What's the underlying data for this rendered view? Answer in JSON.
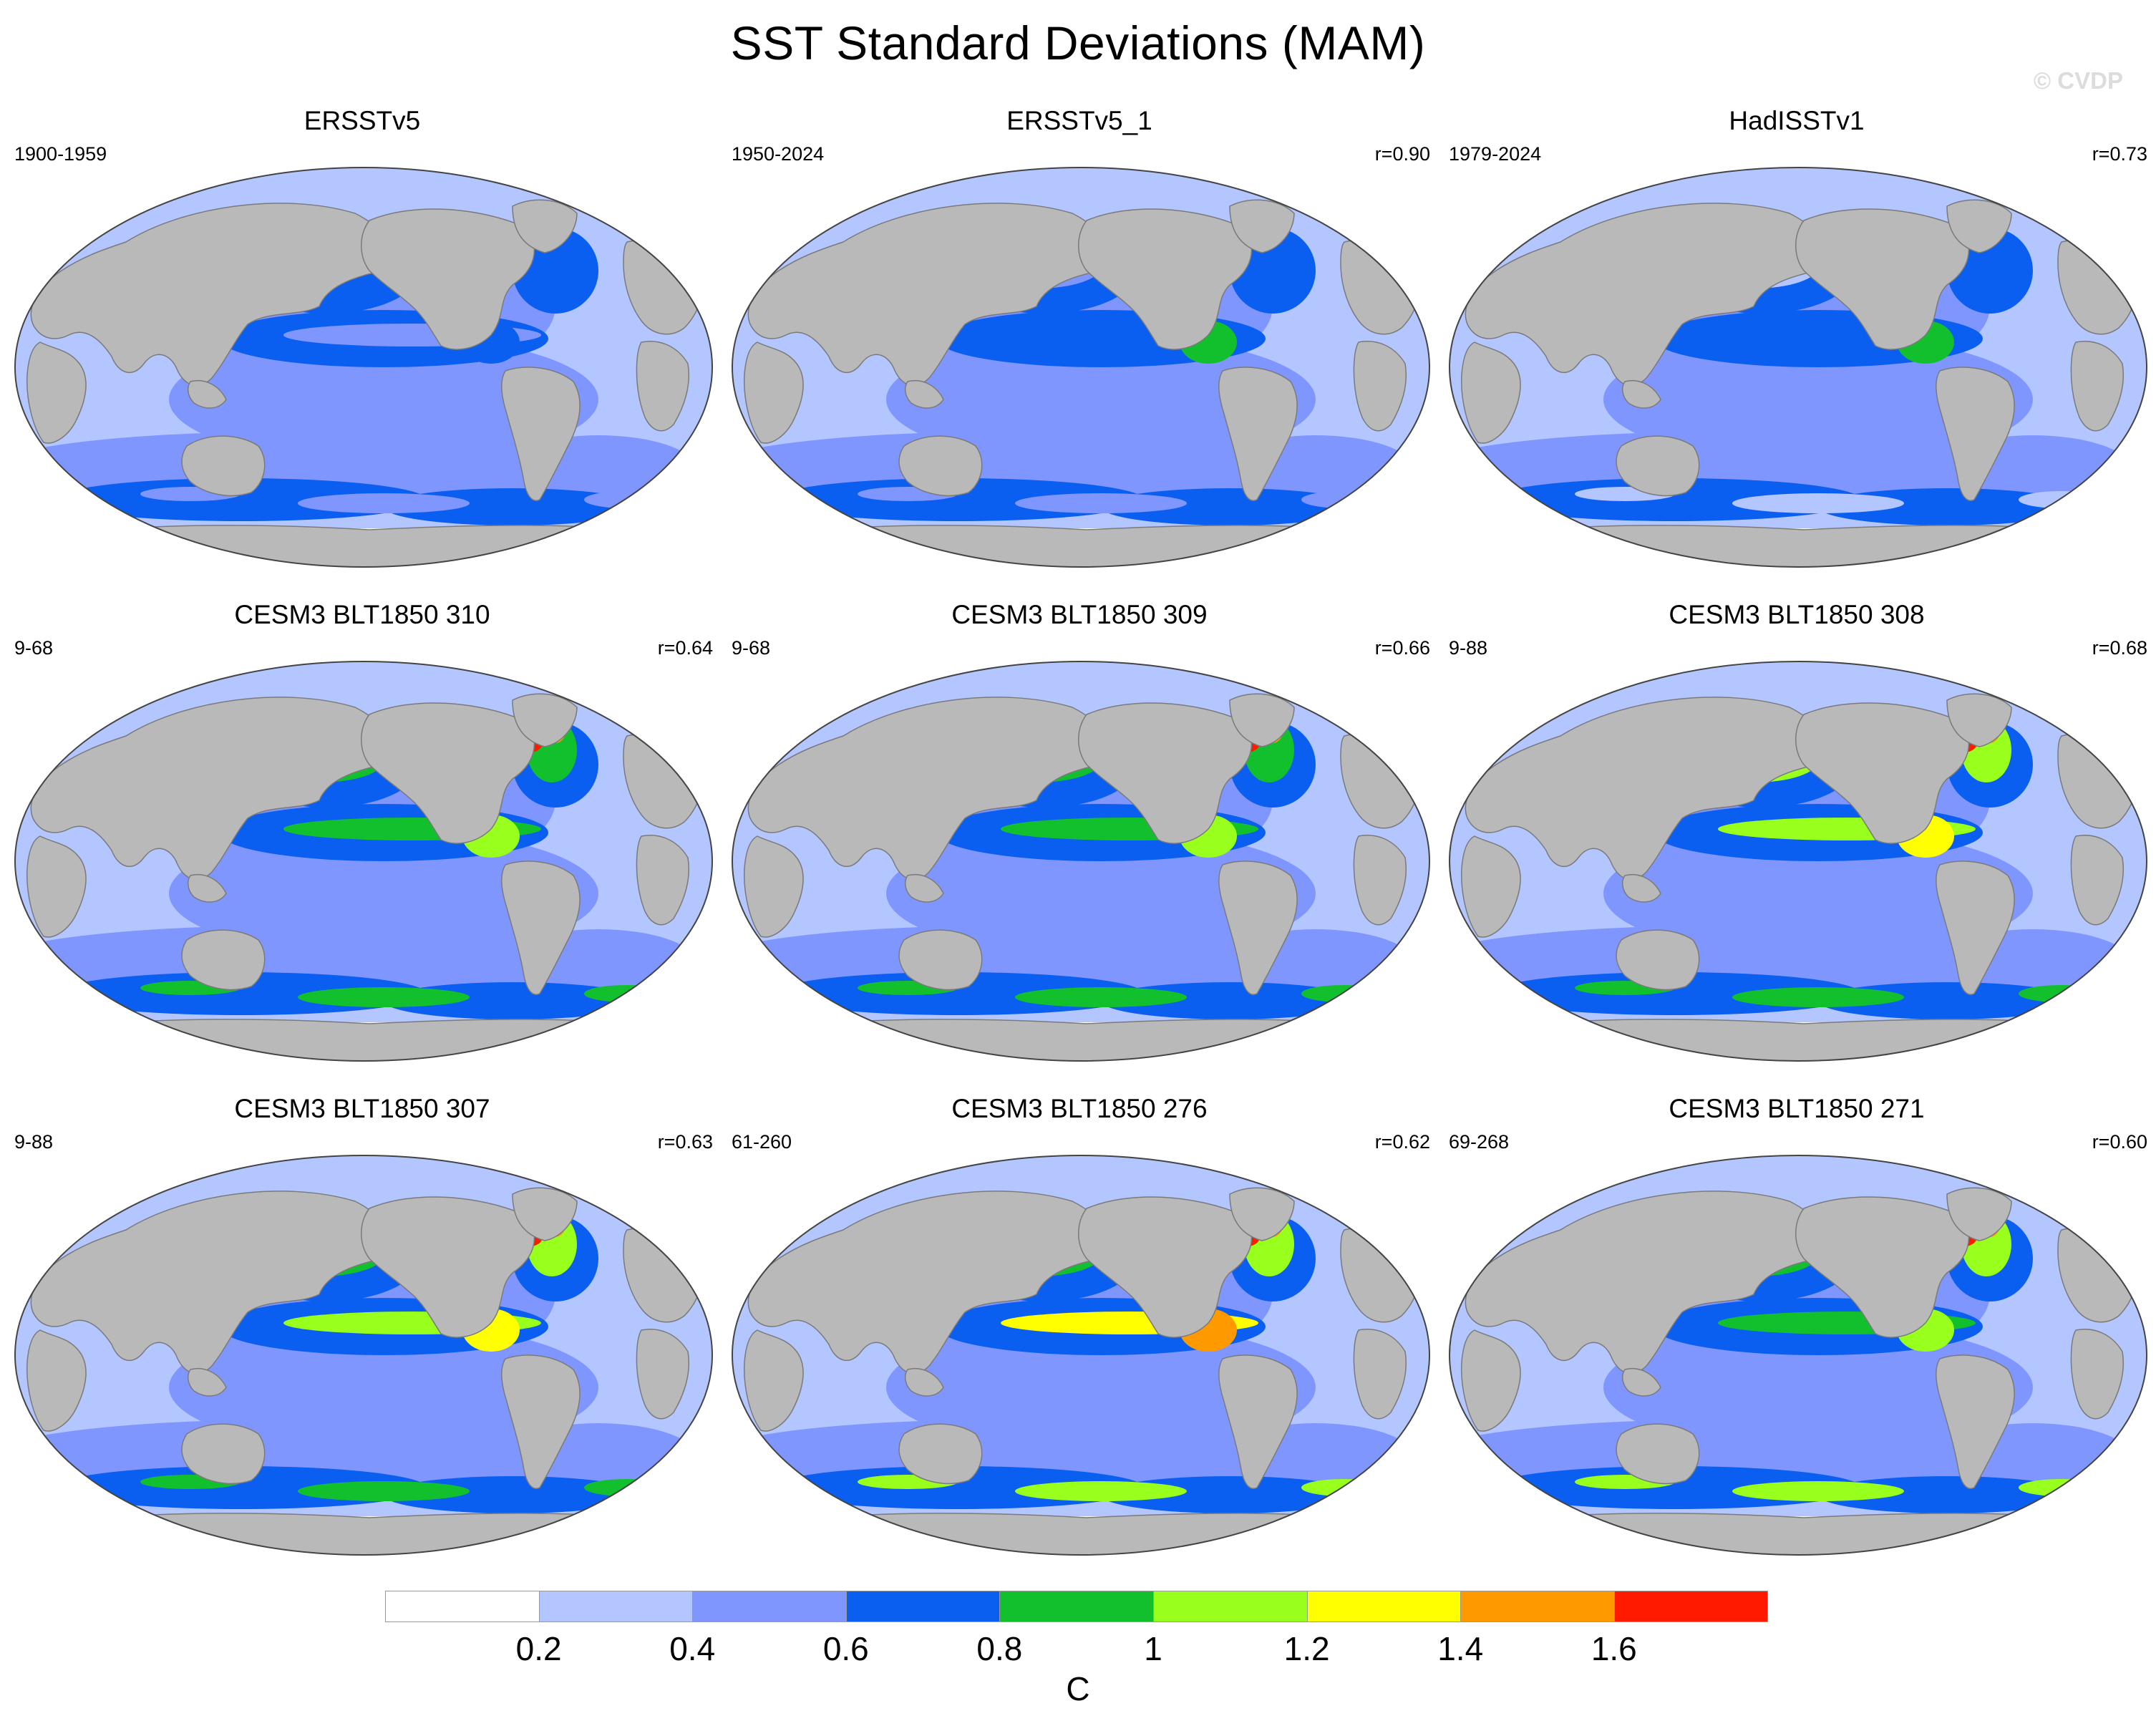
{
  "figure": {
    "title": "SST Standard Deviations (MAM)",
    "watermark": "© CVDP",
    "units": "C"
  },
  "colors": {
    "land": "#b9b9b9",
    "coast": "#7a7a7a",
    "levels": [
      "#ffffff",
      "#b3c6ff",
      "#8096ff",
      "#0a5ef0",
      "#12c02e",
      "#99ff1c",
      "#ffff00",
      "#ff9900",
      "#ff1a00"
    ]
  },
  "panels": [
    {
      "title": "ERSSTv5",
      "period": "1900-1959",
      "r": "",
      "field": {
        "eq": 2,
        "np": 3,
        "na": 3,
        "so": 2,
        "hot": 0
      }
    },
    {
      "title": "ERSSTv5_1",
      "period": "1950-2024",
      "r": "r=0.90",
      "field": {
        "eq": 3,
        "np": 2,
        "na": 3,
        "so": 2,
        "hot": 0
      }
    },
    {
      "title": "HadISSTv1",
      "period": "1979-2024",
      "r": "r=0.73",
      "field": {
        "eq": 3,
        "np": 1,
        "na": 3,
        "so": 1,
        "hot": 0
      }
    },
    {
      "title": "CESM3 BLT1850 310",
      "period": "9-68",
      "r": "r=0.64",
      "field": {
        "eq": 4,
        "np": 4,
        "na": 4,
        "so": 4,
        "hot": 8
      }
    },
    {
      "title": "CESM3 BLT1850 309",
      "period": "9-68",
      "r": "r=0.66",
      "field": {
        "eq": 4,
        "np": 4,
        "na": 4,
        "so": 4,
        "hot": 8
      }
    },
    {
      "title": "CESM3 BLT1850 308",
      "period": "9-88",
      "r": "r=0.68",
      "field": {
        "eq": 5,
        "np": 5,
        "na": 5,
        "so": 4,
        "hot": 8
      }
    },
    {
      "title": "CESM3 BLT1850 307",
      "period": "9-88",
      "r": "r=0.63",
      "field": {
        "eq": 5,
        "np": 4,
        "na": 5,
        "so": 4,
        "hot": 8
      }
    },
    {
      "title": "CESM3 BLT1850 276",
      "period": "61-260",
      "r": "r=0.62",
      "field": {
        "eq": 6,
        "np": 4,
        "na": 5,
        "so": 5,
        "hot": 8
      }
    },
    {
      "title": "CESM3 BLT1850 271",
      "period": "69-268",
      "r": "r=0.60",
      "field": {
        "eq": 4,
        "np": 4,
        "na": 5,
        "so": 5,
        "hot": 8
      }
    }
  ],
  "colorbar": {
    "labels": [
      "0.2",
      "0.4",
      "0.6",
      "0.8",
      "1",
      "1.2",
      "1.4",
      "1.6"
    ]
  }
}
